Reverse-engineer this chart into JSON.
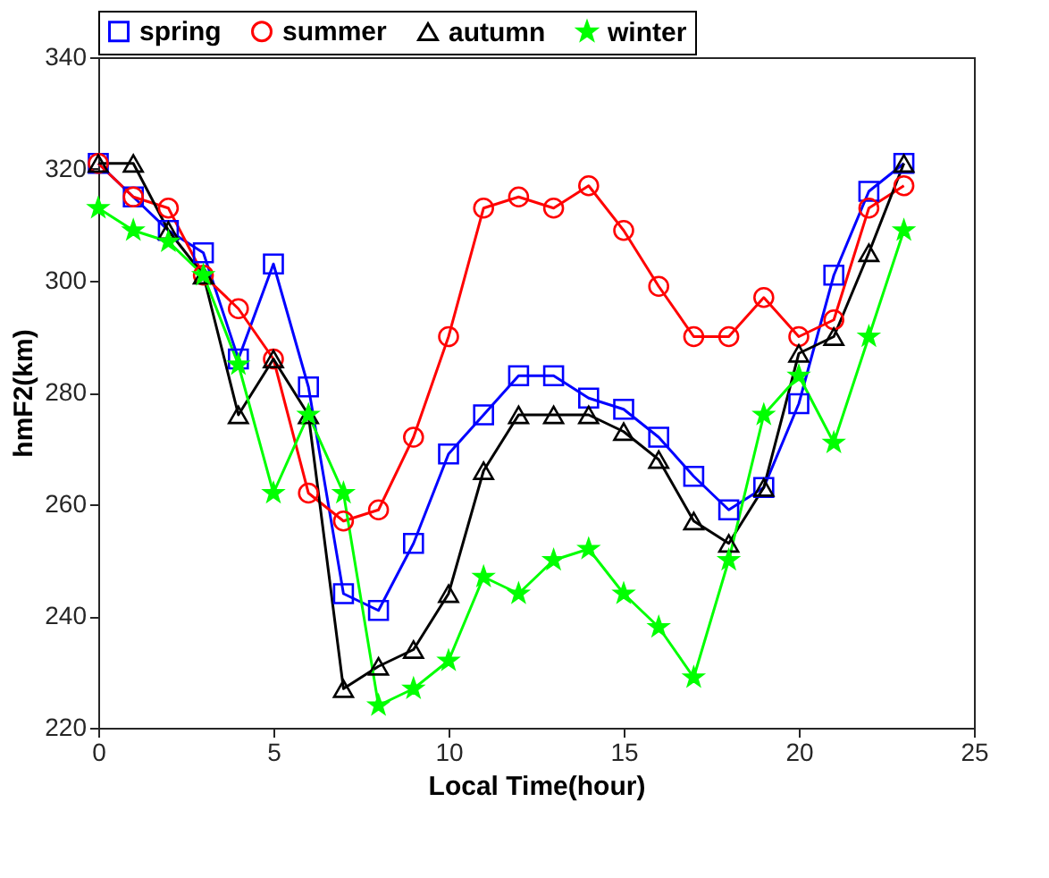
{
  "chart_data": {
    "type": "line",
    "xlabel": "Local Time(hour)",
    "ylabel": "hmF2(km)",
    "x": [
      0,
      1,
      2,
      3,
      4,
      5,
      6,
      7,
      8,
      9,
      10,
      11,
      12,
      13,
      14,
      15,
      16,
      17,
      18,
      19,
      20,
      21,
      22,
      23
    ],
    "xlim": [
      0,
      25
    ],
    "xticks": [
      0,
      5,
      10,
      15,
      20,
      25
    ],
    "ylim": [
      220,
      340
    ],
    "yticks": [
      220,
      240,
      260,
      280,
      300,
      320,
      340
    ],
    "grid": false,
    "legend": "top",
    "line_style": "solid",
    "series": [
      {
        "name": "spring",
        "color": "#0000ff",
        "marker": "square",
        "values": [
          321,
          315,
          309,
          305,
          286,
          303,
          281,
          244,
          241,
          253,
          269,
          276,
          283,
          283,
          279,
          277,
          272,
          265,
          259,
          263,
          278,
          301,
          316,
          321
        ]
      },
      {
        "name": "summer",
        "color": "#ff0000",
        "marker": "circle",
        "values": [
          321,
          315,
          313,
          301,
          295,
          286,
          262,
          257,
          259,
          272,
          290,
          313,
          315,
          313,
          317,
          309,
          299,
          290,
          290,
          297,
          290,
          293,
          313,
          317
        ]
      },
      {
        "name": "autumn",
        "color": "#000000",
        "marker": "triangle",
        "values": [
          321,
          321,
          309,
          301,
          276,
          286,
          276,
          227,
          231,
          234,
          244,
          266,
          276,
          276,
          276,
          273,
          268,
          257,
          253,
          263,
          287,
          290,
          305,
          321
        ]
      },
      {
        "name": "winter",
        "color": "#00ff00",
        "marker": "star",
        "values": [
          313,
          309,
          307,
          301,
          285,
          262,
          276,
          262,
          224,
          227,
          232,
          247,
          244,
          250,
          252,
          244,
          238,
          229,
          250,
          276,
          283,
          271,
          290,
          309
        ]
      }
    ]
  }
}
